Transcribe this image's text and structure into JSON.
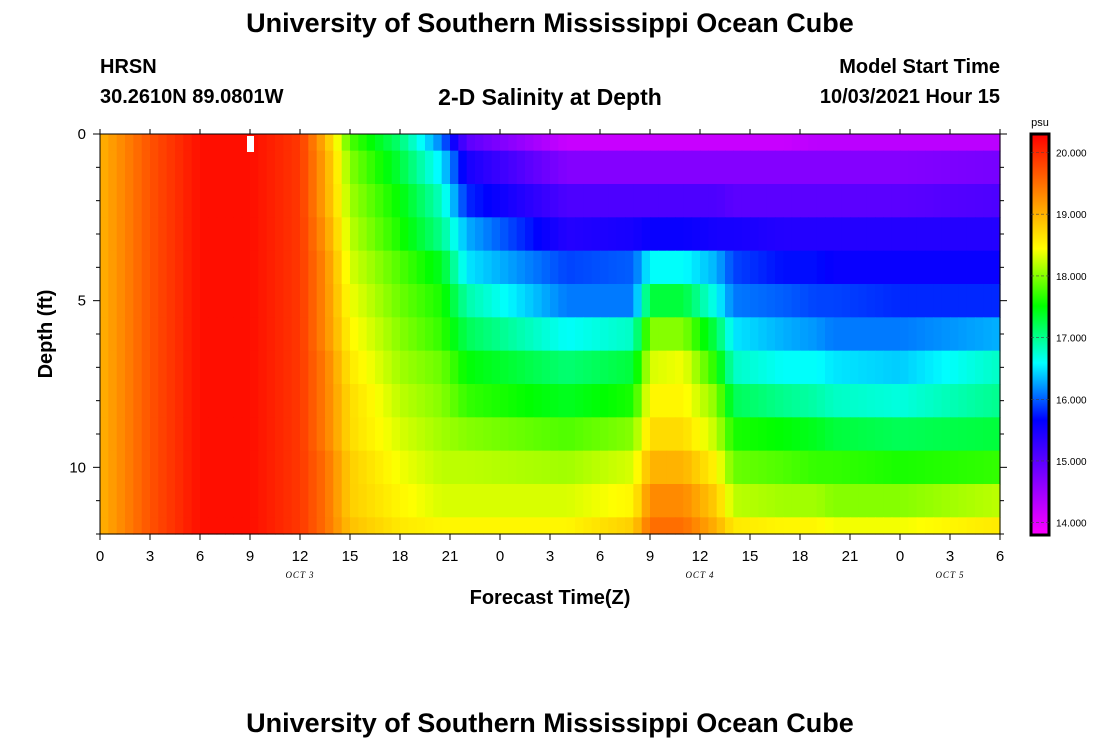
{
  "header": {
    "title": "University of Southern Mississippi Ocean Cube",
    "station": "HRSN",
    "coordinates": "30.2610N  89.0801W",
    "plot_title": "2-D Salinity at Depth",
    "model_start_label": "Model Start Time",
    "model_start_value": "10/03/2021 Hour 15"
  },
  "footer": {
    "title": "University of Southern Mississippi Ocean Cube"
  },
  "colors": {
    "scale": [
      "#ff00ff",
      "#8000ff",
      "#0000ff",
      "#00ffff",
      "#00ff00",
      "#ffff00",
      "#ff8000",
      "#ff0000"
    ]
  },
  "chart_data": {
    "type": "heatmap",
    "title": "2-D Salinity at Depth",
    "xlabel": "Forecast Time(Z)",
    "ylabel": "Depth (ft)",
    "x_ticks": [
      "0",
      "3",
      "6",
      "9",
      "12",
      "15",
      "18",
      "21",
      "0",
      "3",
      "6",
      "9",
      "12",
      "15",
      "18",
      "21",
      "0",
      "3",
      "6"
    ],
    "x_range_hours": [
      0,
      54
    ],
    "date_labels": [
      {
        "label": "OCT 3",
        "hour": 12
      },
      {
        "label": "OCT 4",
        "hour": 36
      },
      {
        "label": "OCT 5",
        "hour": 51
      }
    ],
    "y_ticks": [
      "0",
      "5",
      "10"
    ],
    "y_range_ft": [
      0,
      12.0
    ],
    "colorbar": {
      "unit": "psu",
      "range": [
        13.8,
        20.3
      ],
      "tick_labels": [
        "20.000",
        "19.000",
        "18.000",
        "17.000",
        "16.000",
        "15.000",
        "14.000"
      ],
      "tick_values": [
        20,
        19,
        18,
        17,
        16,
        15,
        14
      ]
    },
    "depth_rows_ft": [
      0,
      1,
      2,
      3,
      4,
      5,
      6,
      7,
      8,
      9,
      10,
      11,
      12
    ],
    "time_knots_hours": [
      0,
      3,
      6,
      9,
      12,
      13.5,
      15,
      18,
      20.5,
      22,
      28,
      32,
      33,
      35,
      37,
      38,
      41,
      43,
      44,
      48,
      54
    ],
    "salinity_psu": [
      [
        19.0,
        19.7,
        20.2,
        20.2,
        19.9,
        19.0,
        17.8,
        17.1,
        16.1,
        15.0,
        14.2,
        14.2,
        14.2,
        14.2,
        14.2,
        14.2,
        14.2,
        14.3,
        14.3,
        14.3,
        14.3
      ],
      [
        19.0,
        19.7,
        20.2,
        20.2,
        19.9,
        19.1,
        18.0,
        17.3,
        16.5,
        15.5,
        14.7,
        14.7,
        14.7,
        14.7,
        14.7,
        14.7,
        14.7,
        14.7,
        14.7,
        14.7,
        14.8
      ],
      [
        19.0,
        19.7,
        20.2,
        20.2,
        19.9,
        19.1,
        18.1,
        17.5,
        16.8,
        15.8,
        15.1,
        15.1,
        15.1,
        15.1,
        15.1,
        15.0,
        15.0,
        15.0,
        15.0,
        15.0,
        15.1
      ],
      [
        19.0,
        19.7,
        20.2,
        20.2,
        19.9,
        19.2,
        18.2,
        17.6,
        17.0,
        16.3,
        15.4,
        15.5,
        15.6,
        15.6,
        15.5,
        15.5,
        15.4,
        15.4,
        15.4,
        15.4,
        15.4
      ],
      [
        19.0,
        19.7,
        20.2,
        20.2,
        19.9,
        19.3,
        18.3,
        17.8,
        17.4,
        16.5,
        15.9,
        16.0,
        16.6,
        16.6,
        16.3,
        15.9,
        15.7,
        15.7,
        15.6,
        15.6,
        15.6
      ],
      [
        19.0,
        19.7,
        20.2,
        20.2,
        19.9,
        19.3,
        18.4,
        17.9,
        17.6,
        16.9,
        16.1,
        16.1,
        17.3,
        17.3,
        16.6,
        16.1,
        16.0,
        15.9,
        15.9,
        15.8,
        15.8
      ],
      [
        19.0,
        19.7,
        20.2,
        20.2,
        19.9,
        19.3,
        18.5,
        18.0,
        17.7,
        17.2,
        16.6,
        16.8,
        18.0,
        18.0,
        17.2,
        16.5,
        16.3,
        16.2,
        16.1,
        16.1,
        16.3
      ],
      [
        19.0,
        19.7,
        20.2,
        20.2,
        19.9,
        19.4,
        18.6,
        18.1,
        17.9,
        17.5,
        17.1,
        17.3,
        18.3,
        18.4,
        17.6,
        16.8,
        16.6,
        16.6,
        16.5,
        16.4,
        16.8
      ],
      [
        19.0,
        19.7,
        20.2,
        20.2,
        19.9,
        19.4,
        18.7,
        18.2,
        18.0,
        17.7,
        17.4,
        17.6,
        18.5,
        18.5,
        18.0,
        17.2,
        17.0,
        16.9,
        16.8,
        16.7,
        17.0
      ],
      [
        19.0,
        19.7,
        20.2,
        20.2,
        19.9,
        19.4,
        18.7,
        18.3,
        18.1,
        18.0,
        17.8,
        18.0,
        18.7,
        18.7,
        18.2,
        17.6,
        17.5,
        17.4,
        17.3,
        17.2,
        17.3
      ],
      [
        19.0,
        19.7,
        20.2,
        20.2,
        19.9,
        19.5,
        18.8,
        18.4,
        18.2,
        18.2,
        18.1,
        18.3,
        19.0,
        19.0,
        18.5,
        17.9,
        17.8,
        17.7,
        17.7,
        17.6,
        17.7
      ],
      [
        19.0,
        19.7,
        20.2,
        20.2,
        19.9,
        19.5,
        18.8,
        18.5,
        18.3,
        18.3,
        18.3,
        18.5,
        19.3,
        19.3,
        18.8,
        18.2,
        18.1,
        18.1,
        18.0,
        18.0,
        18.2
      ],
      [
        19.0,
        19.7,
        20.2,
        20.2,
        19.9,
        19.5,
        18.9,
        18.6,
        18.5,
        18.5,
        18.5,
        18.8,
        19.5,
        19.5,
        19.0,
        18.6,
        18.5,
        18.5,
        18.4,
        18.4,
        18.6
      ]
    ]
  }
}
